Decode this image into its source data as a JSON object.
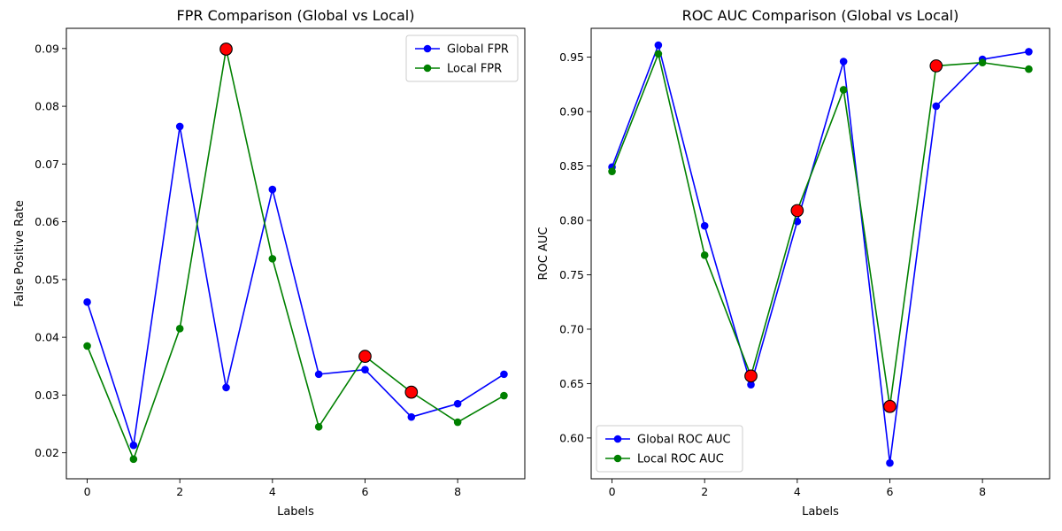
{
  "chart_data": [
    {
      "type": "line",
      "title": "FPR Comparison (Global vs Local)",
      "xlabel": "Labels",
      "ylabel": "False Positive Rate",
      "x": [
        0,
        1,
        2,
        3,
        4,
        5,
        6,
        7,
        8,
        9
      ],
      "xlim": [
        -0.45,
        9.45
      ],
      "ylim": [
        0.0155,
        0.0935
      ],
      "xticks": [
        0,
        2,
        4,
        6,
        8
      ],
      "yticks": [
        0.02,
        0.03,
        0.04,
        0.05,
        0.06,
        0.07,
        0.08,
        0.09
      ],
      "xtick_labels": [
        "0",
        "2",
        "4",
        "6",
        "8"
      ],
      "ytick_labels": [
        "0.02",
        "0.03",
        "0.04",
        "0.05",
        "0.06",
        "0.07",
        "0.08",
        "0.09"
      ],
      "grid": false,
      "legend_position": "upper right",
      "series": [
        {
          "name": "Global FPR",
          "color": "#0000ff",
          "values": [
            0.0461,
            0.0213,
            0.0765,
            0.0313,
            0.0656,
            0.0336,
            0.0344,
            0.0262,
            0.0285,
            0.0336
          ]
        },
        {
          "name": "Local FPR",
          "color": "#008000",
          "values": [
            0.0385,
            0.0189,
            0.0415,
            0.0899,
            0.0536,
            0.0245,
            0.0367,
            0.0305,
            0.0253,
            0.0299
          ]
        }
      ],
      "highlights": {
        "color": "#ff0000",
        "points": [
          {
            "x": 3,
            "y": 0.0899
          },
          {
            "x": 6,
            "y": 0.0367
          },
          {
            "x": 7,
            "y": 0.0305
          }
        ]
      }
    },
    {
      "type": "line",
      "title": "ROC AUC Comparison (Global vs Local)",
      "xlabel": "Labels",
      "ylabel": "ROC AUC",
      "x": [
        0,
        1,
        2,
        3,
        4,
        5,
        6,
        7,
        8,
        9
      ],
      "xlim": [
        -0.45,
        9.45
      ],
      "ylim": [
        0.5625,
        0.9765
      ],
      "xticks": [
        0,
        2,
        4,
        6,
        8
      ],
      "yticks": [
        0.6,
        0.65,
        0.7,
        0.75,
        0.8,
        0.85,
        0.9,
        0.95
      ],
      "xtick_labels": [
        "0",
        "2",
        "4",
        "6",
        "8"
      ],
      "ytick_labels": [
        "0.60",
        "0.65",
        "0.70",
        "0.75",
        "0.80",
        "0.85",
        "0.90",
        "0.95"
      ],
      "grid": false,
      "legend_position": "lower left",
      "series": [
        {
          "name": "Global ROC AUC",
          "color": "#0000ff",
          "values": [
            0.849,
            0.961,
            0.795,
            0.649,
            0.799,
            0.946,
            0.577,
            0.905,
            0.948,
            0.955
          ]
        },
        {
          "name": "Local ROC AUC",
          "color": "#008000",
          "values": [
            0.845,
            0.953,
            0.768,
            0.657,
            0.809,
            0.92,
            0.629,
            0.942,
            0.945,
            0.939
          ]
        }
      ],
      "highlights": {
        "color": "#ff0000",
        "points": [
          {
            "x": 3,
            "y": 0.657
          },
          {
            "x": 4,
            "y": 0.809
          },
          {
            "x": 6,
            "y": 0.629
          },
          {
            "x": 7,
            "y": 0.942
          }
        ]
      }
    }
  ]
}
